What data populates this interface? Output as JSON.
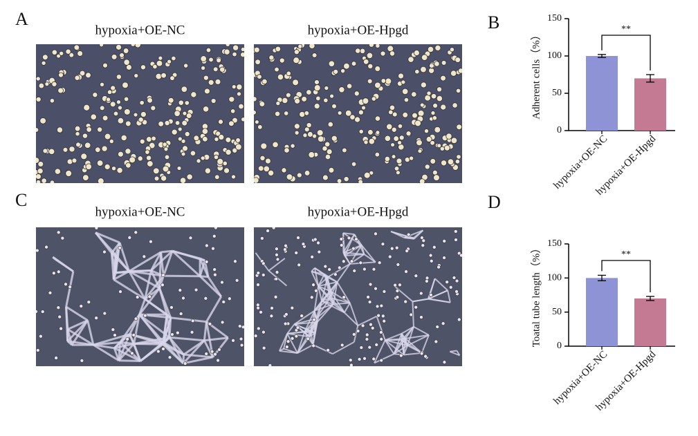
{
  "panels": [
    {
      "label": "A",
      "images": [
        "hypoxia+OE-NC",
        "hypoxia+OE-Hpgd"
      ]
    },
    {
      "label": "C",
      "images": [
        "hypoxia+OE-NC",
        "hypoxia+OE-Hpgd"
      ]
    }
  ],
  "chart_data": [
    {
      "type": "bar",
      "panel_label": "B",
      "ylabel": "Adherent cells（%）",
      "categories": [
        "hypoxia+OE-NC",
        "hypoxia+OE-Hpgd"
      ],
      "values": [
        100,
        70
      ],
      "errors": [
        2,
        5
      ],
      "colors": [
        "#8e93d6",
        "#c57a93"
      ],
      "ylim": [
        0,
        150
      ],
      "yticks": [
        0,
        50,
        100,
        150
      ],
      "significance": "**"
    },
    {
      "type": "bar",
      "panel_label": "D",
      "ylabel": "Toatal tube length（%）",
      "categories": [
        "hypoxia+OE-NC",
        "hypoxia+OE-Hpgd"
      ],
      "values": [
        100,
        70
      ],
      "errors": [
        4,
        3
      ],
      "colors": [
        "#8e93d6",
        "#c57a93"
      ],
      "ylim": [
        0,
        150
      ],
      "yticks": [
        0,
        50,
        100,
        150
      ],
      "significance": "**"
    }
  ]
}
